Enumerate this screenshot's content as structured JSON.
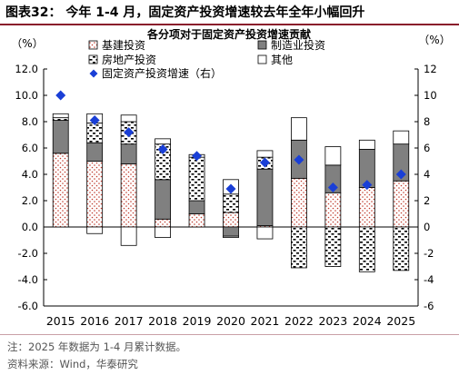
{
  "figure": {
    "title": "图表32： 今年 1-4 月，固定资产投资增速较去年全年小幅回升",
    "note": "注：2025 年数据为 1-4 月累计数据。",
    "source": "资料来源：Wind，华泰研究"
  },
  "chart_data": {
    "type": "bar",
    "stacked": true,
    "title": "各分项对于固定资产投资增速贡献",
    "y_left_unit": "（%）",
    "y_right_unit": "（%）",
    "ylim": [
      -6,
      12
    ],
    "y_ticks": [
      12,
      10,
      8,
      6,
      4,
      2,
      0,
      -2,
      -4,
      -6
    ],
    "y_left_tick_labels": [
      "12.0",
      "10.0",
      "8.0",
      "6.0",
      "4.0",
      "2.0",
      "0.0",
      "-2.0",
      "-4.0",
      "-6.0"
    ],
    "y_right_tick_labels": [
      "12",
      "10",
      "8",
      "6",
      "4",
      "2",
      "0",
      "-2",
      "-4",
      "-6"
    ],
    "legend_position": "top",
    "categories": [
      "2015",
      "2016",
      "2017",
      "2018",
      "2019",
      "2020",
      "2021",
      "2022",
      "2023",
      "2024",
      "2025"
    ],
    "series": [
      {
        "name": "基建投资",
        "pattern": "dots-red",
        "values": [
          5.6,
          5.0,
          4.8,
          0.6,
          1.0,
          1.1,
          0.1,
          3.7,
          2.6,
          3.0,
          3.5
        ]
      },
      {
        "name": "制造业投资",
        "pattern": "solid-gray",
        "values": [
          2.5,
          1.4,
          1.5,
          3.0,
          1.0,
          -0.7,
          4.3,
          2.9,
          2.1,
          2.9,
          2.8
        ]
      },
      {
        "name": "房地产投资",
        "pattern": "hatch-black",
        "values": [
          0.2,
          1.5,
          1.7,
          2.7,
          3.3,
          1.4,
          0.9,
          -3.1,
          -3.0,
          -3.4,
          -3.3
        ]
      },
      {
        "name": "其他",
        "pattern": "white",
        "values": [
          0.3,
          0.7,
          0.5,
          0.4,
          0.2,
          1.1,
          0.5,
          1.7,
          1.4,
          0.7,
          1.0
        ]
      }
    ],
    "line_series": {
      "name": "固定资产投资增速（右）",
      "color": "#1a3fd6",
      "marker": "diamond",
      "values": [
        10.0,
        8.1,
        7.2,
        5.9,
        5.4,
        2.9,
        4.9,
        5.1,
        3.0,
        3.2,
        4.0
      ]
    },
    "other_negative": [
      0,
      -0.5,
      -1.4,
      -0.8,
      0,
      -0.1,
      -0.9,
      0,
      0,
      0,
      0
    ],
    "colors": {
      "dots": "#c0392b",
      "gray": "#808080",
      "hatch": "#000000",
      "diamond": "#1a3fd6"
    }
  }
}
